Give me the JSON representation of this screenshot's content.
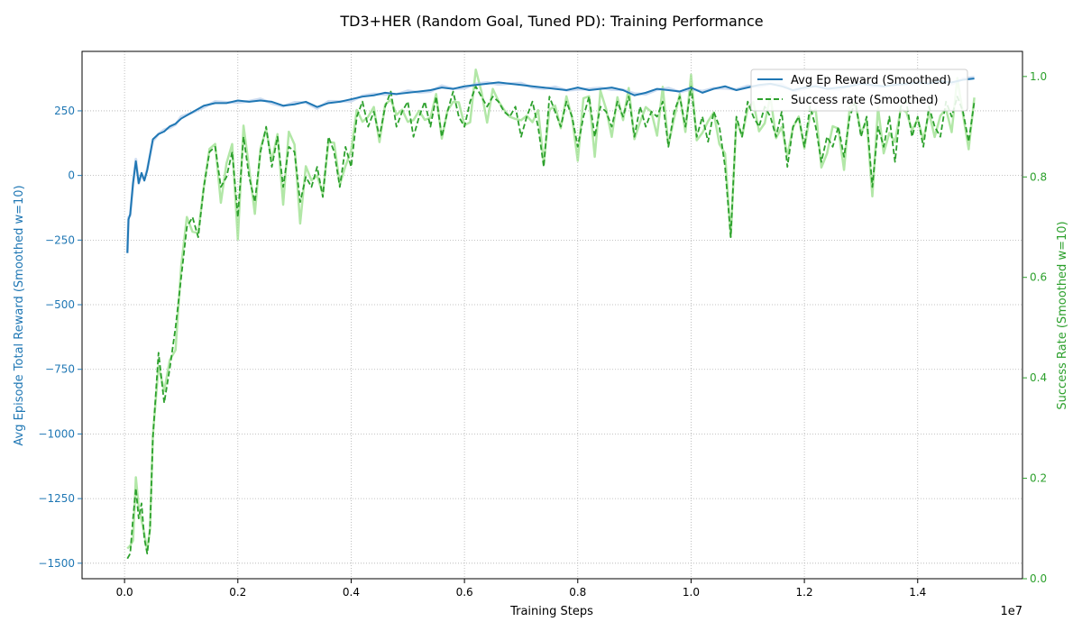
{
  "chart_data": {
    "type": "line",
    "title": "TD3+HER (Random Goal, Tuned PD): Training Performance",
    "xlabel": "Training Steps",
    "x_offset_label": "1e7",
    "ylabel_left": "Avg Episode Total Reward (Smoothed w=10)",
    "ylabel_right": "Success Rate (Smoothed w=10)",
    "xlim": [
      -0.075,
      1.585
    ],
    "ylim_left": [
      -1560,
      480
    ],
    "ylim_right": [
      0.0,
      1.05
    ],
    "x_ticks": [
      0.0,
      0.2,
      0.4,
      0.6,
      0.8,
      1.0,
      1.2,
      1.4
    ],
    "x_tick_labels": [
      "0.0",
      "0.2",
      "0.4",
      "0.6",
      "0.8",
      "1.0",
      "1.2",
      "1.4"
    ],
    "y_left_ticks": [
      -1500,
      -1250,
      -1000,
      -750,
      -500,
      -250,
      0,
      250
    ],
    "y_left_tick_labels": [
      "−1500",
      "−1250",
      "−1000",
      "−750",
      "−500",
      "−250",
      "0",
      "250"
    ],
    "y_right_ticks": [
      0.0,
      0.2,
      0.4,
      0.6,
      0.8,
      1.0
    ],
    "y_right_tick_labels": [
      "0.0",
      "0.2",
      "0.4",
      "0.6",
      "0.8",
      "1.0"
    ],
    "grid": true,
    "legend_position": "top-right",
    "colors": {
      "reward": "#1f77b4",
      "success": "#2ca02c",
      "reward_raw": "#aec7e8",
      "success_raw": "#98df8a"
    },
    "series": [
      {
        "name": "Avg Ep Reward (Smoothed)",
        "axis": "left",
        "style": "solid",
        "x": [
          0.005,
          0.007,
          0.01,
          0.015,
          0.02,
          0.025,
          0.03,
          0.035,
          0.04,
          0.05,
          0.06,
          0.07,
          0.08,
          0.09,
          0.1,
          0.12,
          0.14,
          0.16,
          0.18,
          0.2,
          0.22,
          0.24,
          0.26,
          0.28,
          0.3,
          0.32,
          0.34,
          0.36,
          0.38,
          0.4,
          0.42,
          0.44,
          0.46,
          0.48,
          0.5,
          0.52,
          0.54,
          0.56,
          0.58,
          0.6,
          0.62,
          0.64,
          0.66,
          0.68,
          0.7,
          0.72,
          0.74,
          0.76,
          0.78,
          0.8,
          0.82,
          0.84,
          0.86,
          0.88,
          0.9,
          0.92,
          0.94,
          0.96,
          0.98,
          1.0,
          1.02,
          1.04,
          1.06,
          1.08,
          1.1,
          1.12,
          1.14,
          1.16,
          1.18,
          1.2,
          1.22,
          1.24,
          1.26,
          1.28,
          1.3,
          1.32,
          1.34,
          1.36,
          1.38,
          1.4,
          1.42,
          1.44,
          1.46,
          1.48,
          1.5
        ],
        "values": [
          -300,
          -170,
          -150,
          -30,
          55,
          -30,
          10,
          -20,
          20,
          140,
          160,
          170,
          190,
          200,
          220,
          245,
          270,
          280,
          280,
          290,
          285,
          290,
          285,
          270,
          275,
          285,
          265,
          280,
          285,
          295,
          305,
          310,
          320,
          315,
          320,
          325,
          330,
          340,
          335,
          345,
          350,
          355,
          360,
          355,
          350,
          345,
          340,
          335,
          330,
          340,
          330,
          335,
          340,
          330,
          310,
          320,
          335,
          330,
          325,
          340,
          320,
          335,
          345,
          330,
          340,
          350,
          355,
          345,
          330,
          340,
          345,
          335,
          340,
          345,
          355,
          350,
          345,
          350,
          355,
          360,
          355,
          365,
          360,
          370,
          375
        ]
      },
      {
        "name": "Success rate (Smoothed)",
        "axis": "right",
        "style": "dashed",
        "x": [
          0.005,
          0.01,
          0.015,
          0.02,
          0.025,
          0.03,
          0.035,
          0.04,
          0.045,
          0.05,
          0.06,
          0.07,
          0.08,
          0.09,
          0.1,
          0.11,
          0.12,
          0.13,
          0.14,
          0.15,
          0.16,
          0.17,
          0.18,
          0.19,
          0.2,
          0.21,
          0.22,
          0.23,
          0.24,
          0.25,
          0.26,
          0.27,
          0.28,
          0.29,
          0.3,
          0.31,
          0.32,
          0.33,
          0.34,
          0.35,
          0.36,
          0.37,
          0.38,
          0.39,
          0.4,
          0.41,
          0.42,
          0.43,
          0.44,
          0.45,
          0.46,
          0.47,
          0.48,
          0.49,
          0.5,
          0.51,
          0.52,
          0.53,
          0.54,
          0.55,
          0.56,
          0.57,
          0.58,
          0.59,
          0.6,
          0.61,
          0.62,
          0.63,
          0.64,
          0.65,
          0.66,
          0.67,
          0.68,
          0.69,
          0.7,
          0.71,
          0.72,
          0.73,
          0.74,
          0.75,
          0.76,
          0.77,
          0.78,
          0.79,
          0.8,
          0.81,
          0.82,
          0.83,
          0.84,
          0.85,
          0.86,
          0.87,
          0.88,
          0.89,
          0.9,
          0.91,
          0.92,
          0.93,
          0.94,
          0.95,
          0.96,
          0.97,
          0.98,
          0.99,
          1.0,
          1.01,
          1.02,
          1.03,
          1.04,
          1.05,
          1.06,
          1.07,
          1.08,
          1.09,
          1.1,
          1.11,
          1.12,
          1.13,
          1.14,
          1.15,
          1.16,
          1.17,
          1.18,
          1.19,
          1.2,
          1.21,
          1.22,
          1.23,
          1.24,
          1.25,
          1.26,
          1.27,
          1.28,
          1.29,
          1.3,
          1.31,
          1.32,
          1.33,
          1.34,
          1.35,
          1.36,
          1.37,
          1.38,
          1.39,
          1.4,
          1.41,
          1.42,
          1.43,
          1.44,
          1.45,
          1.46,
          1.47,
          1.48,
          1.49,
          1.5
        ],
        "values": [
          0.04,
          0.05,
          0.12,
          0.18,
          0.12,
          0.15,
          0.08,
          0.05,
          0.1,
          0.28,
          0.45,
          0.35,
          0.42,
          0.5,
          0.6,
          0.7,
          0.72,
          0.68,
          0.78,
          0.85,
          0.86,
          0.78,
          0.8,
          0.85,
          0.72,
          0.88,
          0.8,
          0.75,
          0.85,
          0.9,
          0.82,
          0.88,
          0.78,
          0.86,
          0.85,
          0.75,
          0.8,
          0.78,
          0.82,
          0.76,
          0.88,
          0.85,
          0.78,
          0.86,
          0.82,
          0.92,
          0.95,
          0.9,
          0.93,
          0.88,
          0.94,
          0.97,
          0.9,
          0.93,
          0.95,
          0.88,
          0.92,
          0.95,
          0.9,
          0.96,
          0.88,
          0.93,
          0.97,
          0.92,
          0.9,
          0.95,
          0.98,
          0.96,
          0.94,
          0.96,
          0.95,
          0.93,
          0.92,
          0.94,
          0.88,
          0.92,
          0.95,
          0.9,
          0.82,
          0.96,
          0.93,
          0.9,
          0.95,
          0.92,
          0.86,
          0.92,
          0.96,
          0.88,
          0.94,
          0.93,
          0.9,
          0.95,
          0.92,
          0.96,
          0.88,
          0.94,
          0.9,
          0.93,
          0.92,
          0.95,
          0.86,
          0.93,
          0.96,
          0.9,
          0.98,
          0.88,
          0.92,
          0.87,
          0.93,
          0.9,
          0.82,
          0.68,
          0.92,
          0.88,
          0.95,
          0.92,
          0.9,
          0.94,
          0.92,
          0.88,
          0.93,
          0.82,
          0.9,
          0.92,
          0.86,
          0.94,
          0.9,
          0.83,
          0.88,
          0.86,
          0.9,
          0.84,
          0.92,
          0.95,
          0.88,
          0.92,
          0.78,
          0.9,
          0.86,
          0.92,
          0.83,
          0.94,
          0.95,
          0.88,
          0.92,
          0.86,
          0.94,
          0.9,
          0.88,
          0.95,
          0.92,
          0.96,
          0.93,
          0.87,
          0.95
        ]
      }
    ]
  }
}
